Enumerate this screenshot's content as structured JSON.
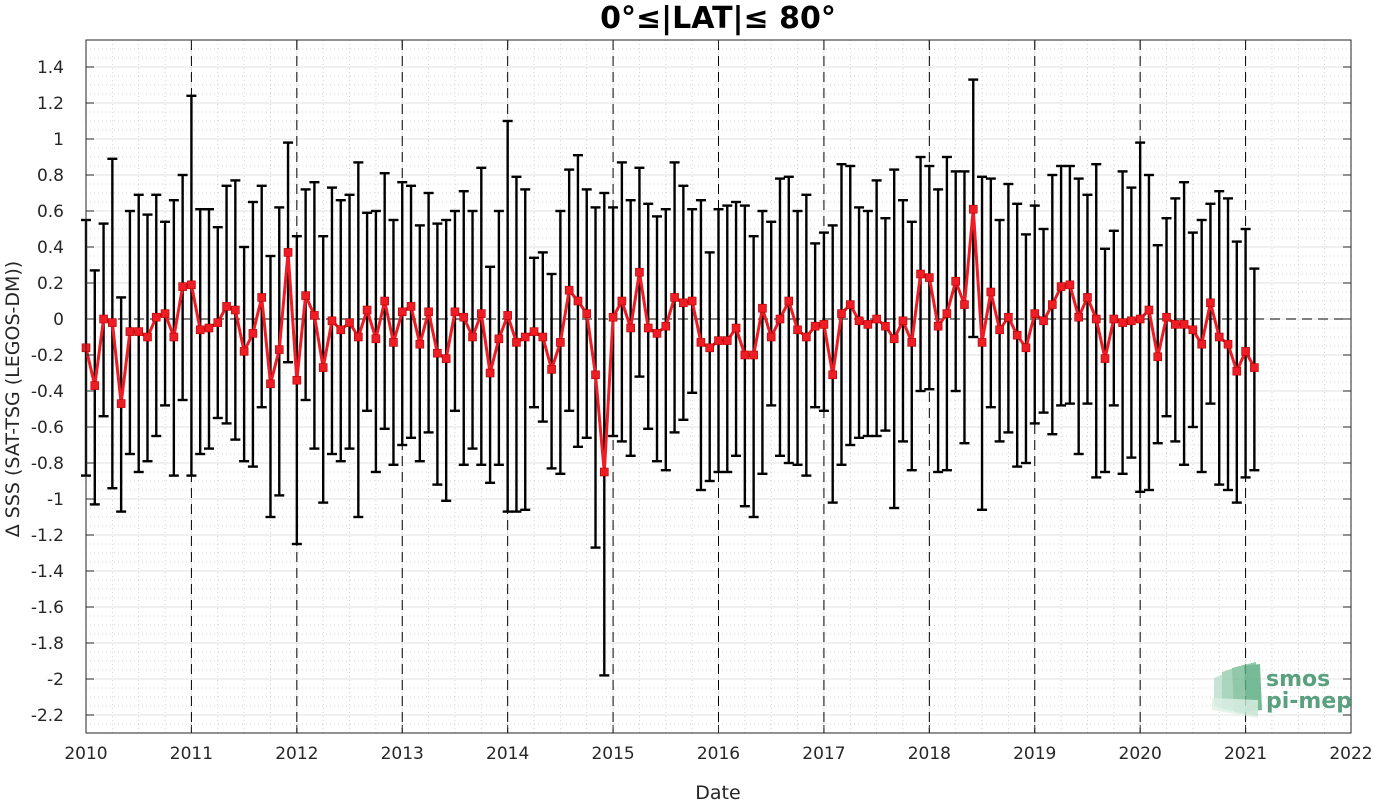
{
  "chart_data": {
    "type": "line",
    "title": "0°≤|LAT|≤ 80°",
    "xlabel": "Date",
    "ylabel": "Δ SSS (SAT-TSG (LEGOS-DM))",
    "xlim": [
      2010,
      2022
    ],
    "ylim": [
      -2.3,
      1.55
    ],
    "x_ticks": [
      "2010",
      "2011",
      "2012",
      "2013",
      "2014",
      "2015",
      "2016",
      "2017",
      "2018",
      "2019",
      "2020",
      "2021",
      "2022"
    ],
    "y_ticks": [
      "1.4",
      "1.2",
      "1",
      "0.8",
      "0.6",
      "0.4",
      "0.2",
      "0",
      "-0.2",
      "-0.4",
      "-0.6",
      "-0.8",
      "-1",
      "-1.2",
      "-1.4",
      "-1.6",
      "-1.8",
      "-2",
      "-2.2"
    ],
    "grid": true,
    "year_dashed_lines": true,
    "zero_reference_line": true,
    "colors": {
      "series": "#ee1c24",
      "errorbar": "#000000",
      "grid": "#c8c8c8"
    },
    "series": [
      {
        "start": "2010-01",
        "interval": "monthly",
        "values": [
          -0.16,
          -0.37,
          0.0,
          -0.02,
          -0.47,
          -0.07,
          -0.07,
          -0.1,
          0.01,
          0.03,
          -0.1,
          0.18,
          0.19,
          -0.06,
          -0.05,
          -0.02,
          0.07,
          0.05,
          -0.18,
          -0.08,
          0.12,
          -0.36,
          -0.17,
          0.37,
          -0.34,
          0.13,
          0.02,
          -0.27,
          -0.01,
          -0.06,
          -0.02,
          -0.1,
          0.05,
          -0.11,
          0.1,
          -0.13,
          0.04,
          0.07,
          -0.14,
          0.04,
          -0.19,
          -0.22,
          0.04,
          0.01,
          -0.1,
          0.03,
          -0.3,
          -0.11,
          0.02,
          -0.13,
          -0.1,
          -0.07,
          -0.1,
          -0.28,
          -0.13,
          0.16,
          0.1,
          0.03,
          -0.31,
          -0.85,
          0.01,
          0.1,
          -0.05,
          0.26,
          -0.05,
          -0.08,
          -0.04,
          0.12,
          0.09,
          0.1,
          -0.13,
          -0.16,
          -0.12,
          -0.12,
          -0.05,
          -0.2,
          -0.2,
          0.06,
          -0.1,
          0.0,
          0.1,
          -0.06,
          -0.1,
          -0.04,
          -0.03,
          -0.31,
          0.03,
          0.08,
          -0.01,
          -0.03,
          0.0,
          -0.04,
          -0.11,
          -0.01,
          -0.13,
          0.25,
          0.23,
          -0.04,
          0.03,
          0.21,
          0.08,
          0.61,
          -0.13,
          0.15,
          -0.06,
          0.01,
          -0.09,
          -0.16,
          0.03,
          -0.01,
          0.08,
          0.18,
          0.19,
          0.01,
          0.12,
          0.0,
          -0.22,
          0.0,
          -0.02,
          -0.01,
          0.0,
          0.05,
          -0.21,
          0.01,
          -0.03,
          -0.03,
          -0.06,
          -0.14,
          0.09,
          -0.1,
          -0.14,
          -0.29,
          -0.18,
          -0.27
        ],
        "upper": [
          0.55,
          0.27,
          0.53,
          0.89,
          0.12,
          0.6,
          0.69,
          0.58,
          0.69,
          0.54,
          0.66,
          0.8,
          1.24,
          0.61,
          0.61,
          0.51,
          0.74,
          0.77,
          0.4,
          0.65,
          0.74,
          0.35,
          0.62,
          0.98,
          0.46,
          0.72,
          0.76,
          0.46,
          0.73,
          0.66,
          0.69,
          0.87,
          0.59,
          0.6,
          0.81,
          0.55,
          0.76,
          0.74,
          0.52,
          0.7,
          0.53,
          0.55,
          0.6,
          0.71,
          0.6,
          0.84,
          0.29,
          0.6,
          1.1,
          0.79,
          0.72,
          0.34,
          0.37,
          0.25,
          0.6,
          0.83,
          0.91,
          0.72,
          0.62,
          0.7,
          0.62,
          0.87,
          0.66,
          0.84,
          0.64,
          0.57,
          0.61,
          0.87,
          0.74,
          0.61,
          0.66,
          0.37,
          0.61,
          0.63,
          0.65,
          0.63,
          0.46,
          0.6,
          0.54,
          0.78,
          0.79,
          0.6,
          0.69,
          0.42,
          0.48,
          0.52,
          0.86,
          0.85,
          0.62,
          0.6,
          0.77,
          0.56,
          0.83,
          0.66,
          0.54,
          0.9,
          0.85,
          0.72,
          0.9,
          0.82,
          0.82,
          1.33,
          0.79,
          0.78,
          0.55,
          0.75,
          0.64,
          0.47,
          0.63,
          0.5,
          0.8,
          0.85,
          0.85,
          0.78,
          0.69,
          0.86,
          0.39,
          0.49,
          0.82,
          0.73,
          0.98,
          0.8,
          0.41,
          0.56,
          0.67,
          0.76,
          0.48,
          0.55,
          0.64,
          0.71,
          0.67,
          0.43,
          0.5,
          0.28
        ],
        "lower": [
          -0.87,
          -1.03,
          -0.54,
          -0.94,
          -1.07,
          -0.75,
          -0.85,
          -0.79,
          -0.65,
          -0.48,
          -0.87,
          -0.45,
          -0.87,
          -0.75,
          -0.72,
          -0.55,
          -0.58,
          -0.67,
          -0.79,
          -0.82,
          -0.49,
          -1.1,
          -0.98,
          -0.24,
          -1.25,
          -0.45,
          -0.72,
          -1.02,
          -0.75,
          -0.79,
          -0.72,
          -1.1,
          -0.51,
          -0.85,
          -0.61,
          -0.81,
          -0.7,
          -0.66,
          -0.79,
          -0.63,
          -0.92,
          -1.01,
          -0.51,
          -0.81,
          -0.72,
          -0.81,
          -0.91,
          -0.81,
          -1.07,
          -1.07,
          -1.06,
          -0.49,
          -0.57,
          -0.83,
          -0.86,
          -0.51,
          -0.71,
          -0.66,
          -1.27,
          -1.98,
          -0.65,
          -0.68,
          -0.76,
          -0.32,
          -0.61,
          -0.79,
          -0.84,
          -0.63,
          -0.56,
          -0.41,
          -0.95,
          -0.9,
          -0.85,
          -0.85,
          -0.76,
          -1.04,
          -1.1,
          -0.86,
          -0.48,
          -0.76,
          -0.8,
          -0.81,
          -0.87,
          -0.49,
          -0.51,
          -1.02,
          -0.81,
          -0.7,
          -0.66,
          -0.65,
          -0.65,
          -0.62,
          -1.05,
          -0.68,
          -0.84,
          -0.4,
          -0.39,
          -0.85,
          -0.84,
          -0.4,
          -0.69,
          -0.1,
          -1.06,
          -0.49,
          -0.68,
          -0.63,
          -0.82,
          -0.8,
          -0.58,
          -0.52,
          -0.64,
          -0.48,
          -0.47,
          -0.75,
          -0.47,
          -0.88,
          -0.85,
          -0.48,
          -0.86,
          -0.77,
          -0.96,
          -0.95,
          -0.69,
          -0.54,
          -0.68,
          -0.81,
          -0.6,
          -0.85,
          -0.47,
          -0.92,
          -0.95,
          -1.02,
          -0.88,
          -0.84
        ]
      }
    ]
  },
  "logo": {
    "line1": "smos",
    "line2": "pi-mep"
  }
}
